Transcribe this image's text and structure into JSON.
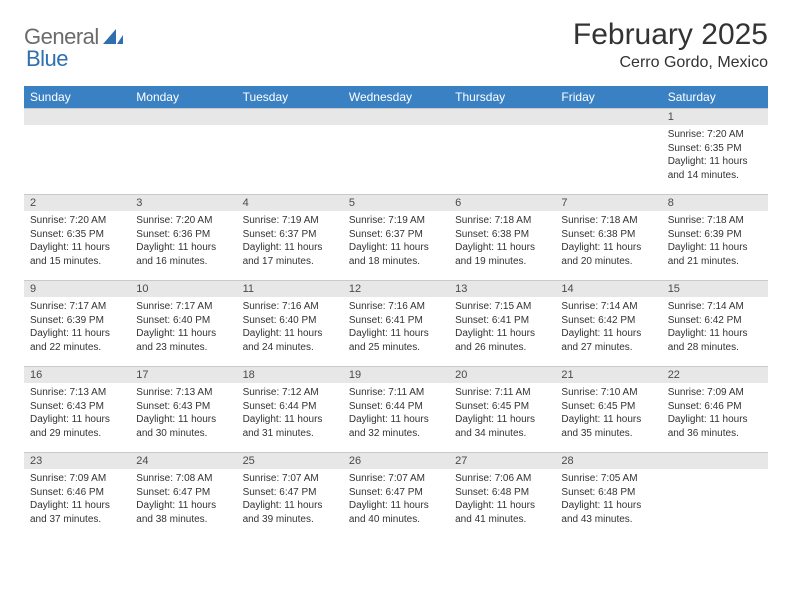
{
  "brand": {
    "part1": "General",
    "part2": "Blue"
  },
  "title": "February 2025",
  "location": "Cerro Gordo, Mexico",
  "colors": {
    "header_bg": "#3a81c4",
    "header_text": "#ffffff",
    "daynum_bg": "#e7e7e7",
    "border": "#c9c9c9",
    "text": "#333333",
    "logo_gray": "#6b6b6b",
    "logo_blue": "#2f6fb0"
  },
  "weekdays": [
    "Sunday",
    "Monday",
    "Tuesday",
    "Wednesday",
    "Thursday",
    "Friday",
    "Saturday"
  ],
  "weeks": [
    [
      null,
      null,
      null,
      null,
      null,
      null,
      {
        "n": "1",
        "sr": "Sunrise: 7:20 AM",
        "ss": "Sunset: 6:35 PM",
        "dl": "Daylight: 11 hours and 14 minutes."
      }
    ],
    [
      {
        "n": "2",
        "sr": "Sunrise: 7:20 AM",
        "ss": "Sunset: 6:35 PM",
        "dl": "Daylight: 11 hours and 15 minutes."
      },
      {
        "n": "3",
        "sr": "Sunrise: 7:20 AM",
        "ss": "Sunset: 6:36 PM",
        "dl": "Daylight: 11 hours and 16 minutes."
      },
      {
        "n": "4",
        "sr": "Sunrise: 7:19 AM",
        "ss": "Sunset: 6:37 PM",
        "dl": "Daylight: 11 hours and 17 minutes."
      },
      {
        "n": "5",
        "sr": "Sunrise: 7:19 AM",
        "ss": "Sunset: 6:37 PM",
        "dl": "Daylight: 11 hours and 18 minutes."
      },
      {
        "n": "6",
        "sr": "Sunrise: 7:18 AM",
        "ss": "Sunset: 6:38 PM",
        "dl": "Daylight: 11 hours and 19 minutes."
      },
      {
        "n": "7",
        "sr": "Sunrise: 7:18 AM",
        "ss": "Sunset: 6:38 PM",
        "dl": "Daylight: 11 hours and 20 minutes."
      },
      {
        "n": "8",
        "sr": "Sunrise: 7:18 AM",
        "ss": "Sunset: 6:39 PM",
        "dl": "Daylight: 11 hours and 21 minutes."
      }
    ],
    [
      {
        "n": "9",
        "sr": "Sunrise: 7:17 AM",
        "ss": "Sunset: 6:39 PM",
        "dl": "Daylight: 11 hours and 22 minutes."
      },
      {
        "n": "10",
        "sr": "Sunrise: 7:17 AM",
        "ss": "Sunset: 6:40 PM",
        "dl": "Daylight: 11 hours and 23 minutes."
      },
      {
        "n": "11",
        "sr": "Sunrise: 7:16 AM",
        "ss": "Sunset: 6:40 PM",
        "dl": "Daylight: 11 hours and 24 minutes."
      },
      {
        "n": "12",
        "sr": "Sunrise: 7:16 AM",
        "ss": "Sunset: 6:41 PM",
        "dl": "Daylight: 11 hours and 25 minutes."
      },
      {
        "n": "13",
        "sr": "Sunrise: 7:15 AM",
        "ss": "Sunset: 6:41 PM",
        "dl": "Daylight: 11 hours and 26 minutes."
      },
      {
        "n": "14",
        "sr": "Sunrise: 7:14 AM",
        "ss": "Sunset: 6:42 PM",
        "dl": "Daylight: 11 hours and 27 minutes."
      },
      {
        "n": "15",
        "sr": "Sunrise: 7:14 AM",
        "ss": "Sunset: 6:42 PM",
        "dl": "Daylight: 11 hours and 28 minutes."
      }
    ],
    [
      {
        "n": "16",
        "sr": "Sunrise: 7:13 AM",
        "ss": "Sunset: 6:43 PM",
        "dl": "Daylight: 11 hours and 29 minutes."
      },
      {
        "n": "17",
        "sr": "Sunrise: 7:13 AM",
        "ss": "Sunset: 6:43 PM",
        "dl": "Daylight: 11 hours and 30 minutes."
      },
      {
        "n": "18",
        "sr": "Sunrise: 7:12 AM",
        "ss": "Sunset: 6:44 PM",
        "dl": "Daylight: 11 hours and 31 minutes."
      },
      {
        "n": "19",
        "sr": "Sunrise: 7:11 AM",
        "ss": "Sunset: 6:44 PM",
        "dl": "Daylight: 11 hours and 32 minutes."
      },
      {
        "n": "20",
        "sr": "Sunrise: 7:11 AM",
        "ss": "Sunset: 6:45 PM",
        "dl": "Daylight: 11 hours and 34 minutes."
      },
      {
        "n": "21",
        "sr": "Sunrise: 7:10 AM",
        "ss": "Sunset: 6:45 PM",
        "dl": "Daylight: 11 hours and 35 minutes."
      },
      {
        "n": "22",
        "sr": "Sunrise: 7:09 AM",
        "ss": "Sunset: 6:46 PM",
        "dl": "Daylight: 11 hours and 36 minutes."
      }
    ],
    [
      {
        "n": "23",
        "sr": "Sunrise: 7:09 AM",
        "ss": "Sunset: 6:46 PM",
        "dl": "Daylight: 11 hours and 37 minutes."
      },
      {
        "n": "24",
        "sr": "Sunrise: 7:08 AM",
        "ss": "Sunset: 6:47 PM",
        "dl": "Daylight: 11 hours and 38 minutes."
      },
      {
        "n": "25",
        "sr": "Sunrise: 7:07 AM",
        "ss": "Sunset: 6:47 PM",
        "dl": "Daylight: 11 hours and 39 minutes."
      },
      {
        "n": "26",
        "sr": "Sunrise: 7:07 AM",
        "ss": "Sunset: 6:47 PM",
        "dl": "Daylight: 11 hours and 40 minutes."
      },
      {
        "n": "27",
        "sr": "Sunrise: 7:06 AM",
        "ss": "Sunset: 6:48 PM",
        "dl": "Daylight: 11 hours and 41 minutes."
      },
      {
        "n": "28",
        "sr": "Sunrise: 7:05 AM",
        "ss": "Sunset: 6:48 PM",
        "dl": "Daylight: 11 hours and 43 minutes."
      },
      null
    ]
  ]
}
